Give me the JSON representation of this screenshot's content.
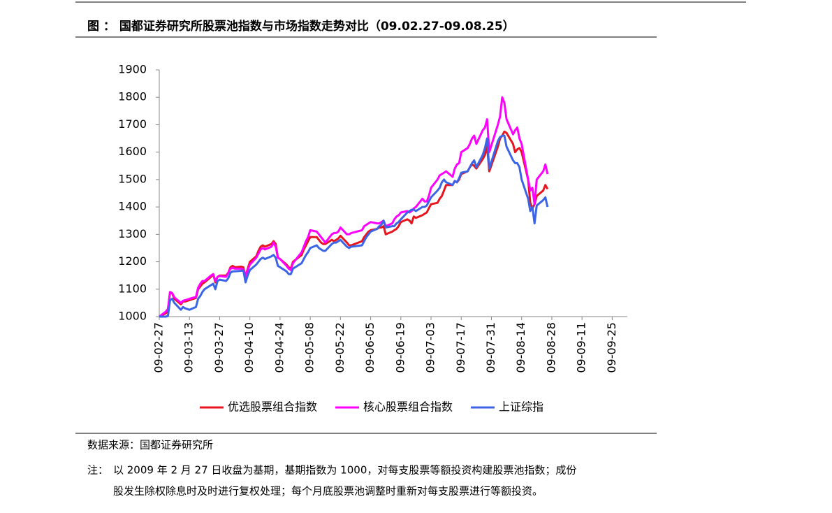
{
  "chart_data": {
    "type": "line",
    "title": "图 ： 国都证券研究所股票池指数与市场指数走势对比（09.02.27-09.08.25）",
    "x": [
      "09-02-27",
      "09-03-02",
      "09-03-03",
      "09-03-04",
      "09-03-05",
      "09-03-06",
      "09-03-09",
      "09-03-10",
      "09-03-11",
      "09-03-13",
      "09-03-16",
      "09-03-17",
      "09-03-18",
      "09-03-19",
      "09-03-20",
      "09-03-23",
      "09-03-24",
      "09-03-25",
      "09-03-26",
      "09-03-27",
      "09-03-30",
      "09-03-31",
      "09-04-01",
      "09-04-02",
      "09-04-03",
      "09-04-06",
      "09-04-07",
      "09-04-08",
      "09-04-09",
      "09-04-10",
      "09-04-13",
      "09-04-14",
      "09-04-15",
      "09-04-16",
      "09-04-17",
      "09-04-20",
      "09-04-21",
      "09-04-22",
      "09-04-23",
      "09-04-24",
      "09-04-27",
      "09-04-28",
      "09-04-29",
      "09-04-30",
      "09-05-04",
      "09-05-05",
      "09-05-06",
      "09-05-07",
      "09-05-08",
      "09-05-11",
      "09-05-12",
      "09-05-13",
      "09-05-14",
      "09-05-15",
      "09-05-18",
      "09-05-19",
      "09-05-20",
      "09-05-21",
      "09-05-22",
      "09-05-25",
      "09-05-26",
      "09-05-27",
      "09-06-01",
      "09-06-02",
      "09-06-03",
      "09-06-04",
      "09-06-05",
      "09-06-08",
      "09-06-09",
      "09-06-10",
      "09-06-11",
      "09-06-12",
      "09-06-15",
      "09-06-16",
      "09-06-17",
      "09-06-18",
      "09-06-19",
      "09-06-22",
      "09-06-23",
      "09-06-24",
      "09-06-25",
      "09-06-26",
      "09-06-29",
      "09-06-30",
      "09-07-01",
      "09-07-02",
      "09-07-03",
      "09-07-06",
      "09-07-07",
      "09-07-08",
      "09-07-09",
      "09-07-10",
      "09-07-13",
      "09-07-14",
      "09-07-15",
      "09-07-16",
      "09-07-17",
      "09-07-20",
      "09-07-21",
      "09-07-22",
      "09-07-23",
      "09-07-24",
      "09-07-27",
      "09-07-28",
      "09-07-29",
      "09-07-30",
      "09-08-03",
      "09-08-04",
      "09-08-05",
      "09-08-06",
      "09-08-07",
      "09-08-10",
      "09-08-11",
      "09-08-12",
      "09-08-13",
      "09-08-14",
      "09-08-17",
      "09-08-18",
      "09-08-19",
      "09-08-20",
      "09-08-21",
      "09-08-24",
      "09-08-25",
      "09-08-26"
    ],
    "series": [
      {
        "name": "优选股票组合指数",
        "color": "#e8141e",
        "values": [
          1000,
          1012,
          1022,
          1088,
          1085,
          1065,
          1045,
          1055,
          1055,
          1060,
          1068,
          1100,
          1110,
          1120,
          1125,
          1145,
          1155,
          1125,
          1145,
          1150,
          1150,
          1160,
          1180,
          1185,
          1180,
          1182,
          1180,
          1145,
          1175,
          1200,
          1220,
          1240,
          1255,
          1260,
          1255,
          1265,
          1275,
          1265,
          1215,
          1210,
          1190,
          1180,
          1175,
          1200,
          1225,
          1245,
          1260,
          1275,
          1290,
          1290,
          1280,
          1270,
          1265,
          1265,
          1280,
          1275,
          1280,
          1285,
          1295,
          1270,
          1260,
          1260,
          1275,
          1290,
          1300,
          1310,
          1315,
          1320,
          1325,
          1325,
          1330,
          1300,
          1310,
          1315,
          1320,
          1330,
          1345,
          1355,
          1350,
          1340,
          1365,
          1360,
          1370,
          1375,
          1380,
          1395,
          1410,
          1415,
          1430,
          1440,
          1460,
          1480,
          1480,
          1495,
          1490,
          1500,
          1520,
          1530,
          1545,
          1555,
          1550,
          1540,
          1575,
          1590,
          1620,
          1530,
          1620,
          1650,
          1660,
          1675,
          1670,
          1630,
          1600,
          1610,
          1615,
          1600,
          1500,
          1415,
          1395,
          1410,
          1440,
          1460,
          1480,
          1465
        ]
      },
      {
        "name": "核心股票组合指数",
        "color": "#ff00ff",
        "values": [
          1000,
          1018,
          1028,
          1090,
          1086,
          1070,
          1050,
          1058,
          1060,
          1065,
          1072,
          1105,
          1120,
          1130,
          1130,
          1150,
          1155,
          1130,
          1145,
          1148,
          1145,
          1160,
          1175,
          1178,
          1175,
          1175,
          1172,
          1145,
          1170,
          1190,
          1215,
          1230,
          1245,
          1250,
          1245,
          1255,
          1270,
          1255,
          1215,
          1210,
          1185,
          1175,
          1170,
          1195,
          1235,
          1255,
          1275,
          1290,
          1315,
          1310,
          1300,
          1290,
          1280,
          1270,
          1300,
          1305,
          1305,
          1310,
          1325,
          1300,
          1300,
          1305,
          1315,
          1330,
          1335,
          1340,
          1345,
          1340,
          1340,
          1345,
          1350,
          1330,
          1340,
          1355,
          1365,
          1370,
          1380,
          1385,
          1380,
          1385,
          1395,
          1400,
          1430,
          1420,
          1420,
          1440,
          1470,
          1500,
          1515,
          1520,
          1525,
          1530,
          1510,
          1540,
          1555,
          1560,
          1600,
          1615,
          1630,
          1650,
          1660,
          1630,
          1680,
          1690,
          1720,
          1600,
          1700,
          1730,
          1800,
          1780,
          1720,
          1665,
          1680,
          1690,
          1650,
          1630,
          1500,
          1460,
          1470,
          1410,
          1500,
          1530,
          1555,
          1520
        ]
      },
      {
        "name": "上证综指",
        "color": "#3c64e6",
        "values": [
          1000,
          1000,
          1002,
          1060,
          1065,
          1050,
          1025,
          1035,
          1030,
          1025,
          1035,
          1065,
          1075,
          1090,
          1100,
          1115,
          1120,
          1100,
          1130,
          1135,
          1130,
          1140,
          1160,
          1165,
          1165,
          1167,
          1168,
          1125,
          1150,
          1170,
          1190,
          1200,
          1210,
          1215,
          1210,
          1220,
          1225,
          1215,
          1185,
          1180,
          1165,
          1155,
          1155,
          1175,
          1195,
          1210,
          1225,
          1235,
          1250,
          1260,
          1250,
          1245,
          1240,
          1240,
          1265,
          1270,
          1270,
          1275,
          1280,
          1255,
          1250,
          1255,
          1260,
          1275,
          1290,
          1300,
          1310,
          1320,
          1330,
          1335,
          1350,
          1325,
          1330,
          1330,
          1340,
          1345,
          1355,
          1380,
          1385,
          1390,
          1390,
          1385,
          1400,
          1400,
          1405,
          1420,
          1435,
          1460,
          1470,
          1490,
          1500,
          1490,
          1480,
          1495,
          1490,
          1505,
          1525,
          1530,
          1545,
          1560,
          1570,
          1545,
          1590,
          1615,
          1650,
          1540,
          1640,
          1655,
          1660,
          1660,
          1620,
          1570,
          1560,
          1560,
          1545,
          1500,
          1430,
          1385,
          1400,
          1340,
          1405,
          1425,
          1435,
          1400
        ]
      }
    ],
    "xlim": [
      "09-02-27",
      "09-10-02"
    ],
    "xticks": [
      "09-02-27",
      "09-03-13",
      "09-03-27",
      "09-04-10",
      "09-04-24",
      "09-05-08",
      "09-05-22",
      "09-06-05",
      "09-06-19",
      "09-07-03",
      "09-07-17",
      "09-07-31",
      "09-08-14",
      "09-08-28",
      "09-09-11",
      "09-09-25"
    ],
    "ylim": [
      1000,
      1900
    ],
    "yticks": [
      1000,
      1100,
      1200,
      1300,
      1400,
      1500,
      1600,
      1700,
      1800,
      1900
    ],
    "grid": false,
    "legend": "bottom"
  },
  "source": "数据来源：国都证券研究所",
  "note": {
    "label": "注：",
    "lines": [
      "以 2009 年 2 月 27 日收盘为基期，基期指数为 1000，对每支股票等额投资构建股票池指数；成份",
      "股发生除权除息时及时进行复权处理；每个月底股票池调整时重新对每支股票进行等额投资。"
    ]
  }
}
